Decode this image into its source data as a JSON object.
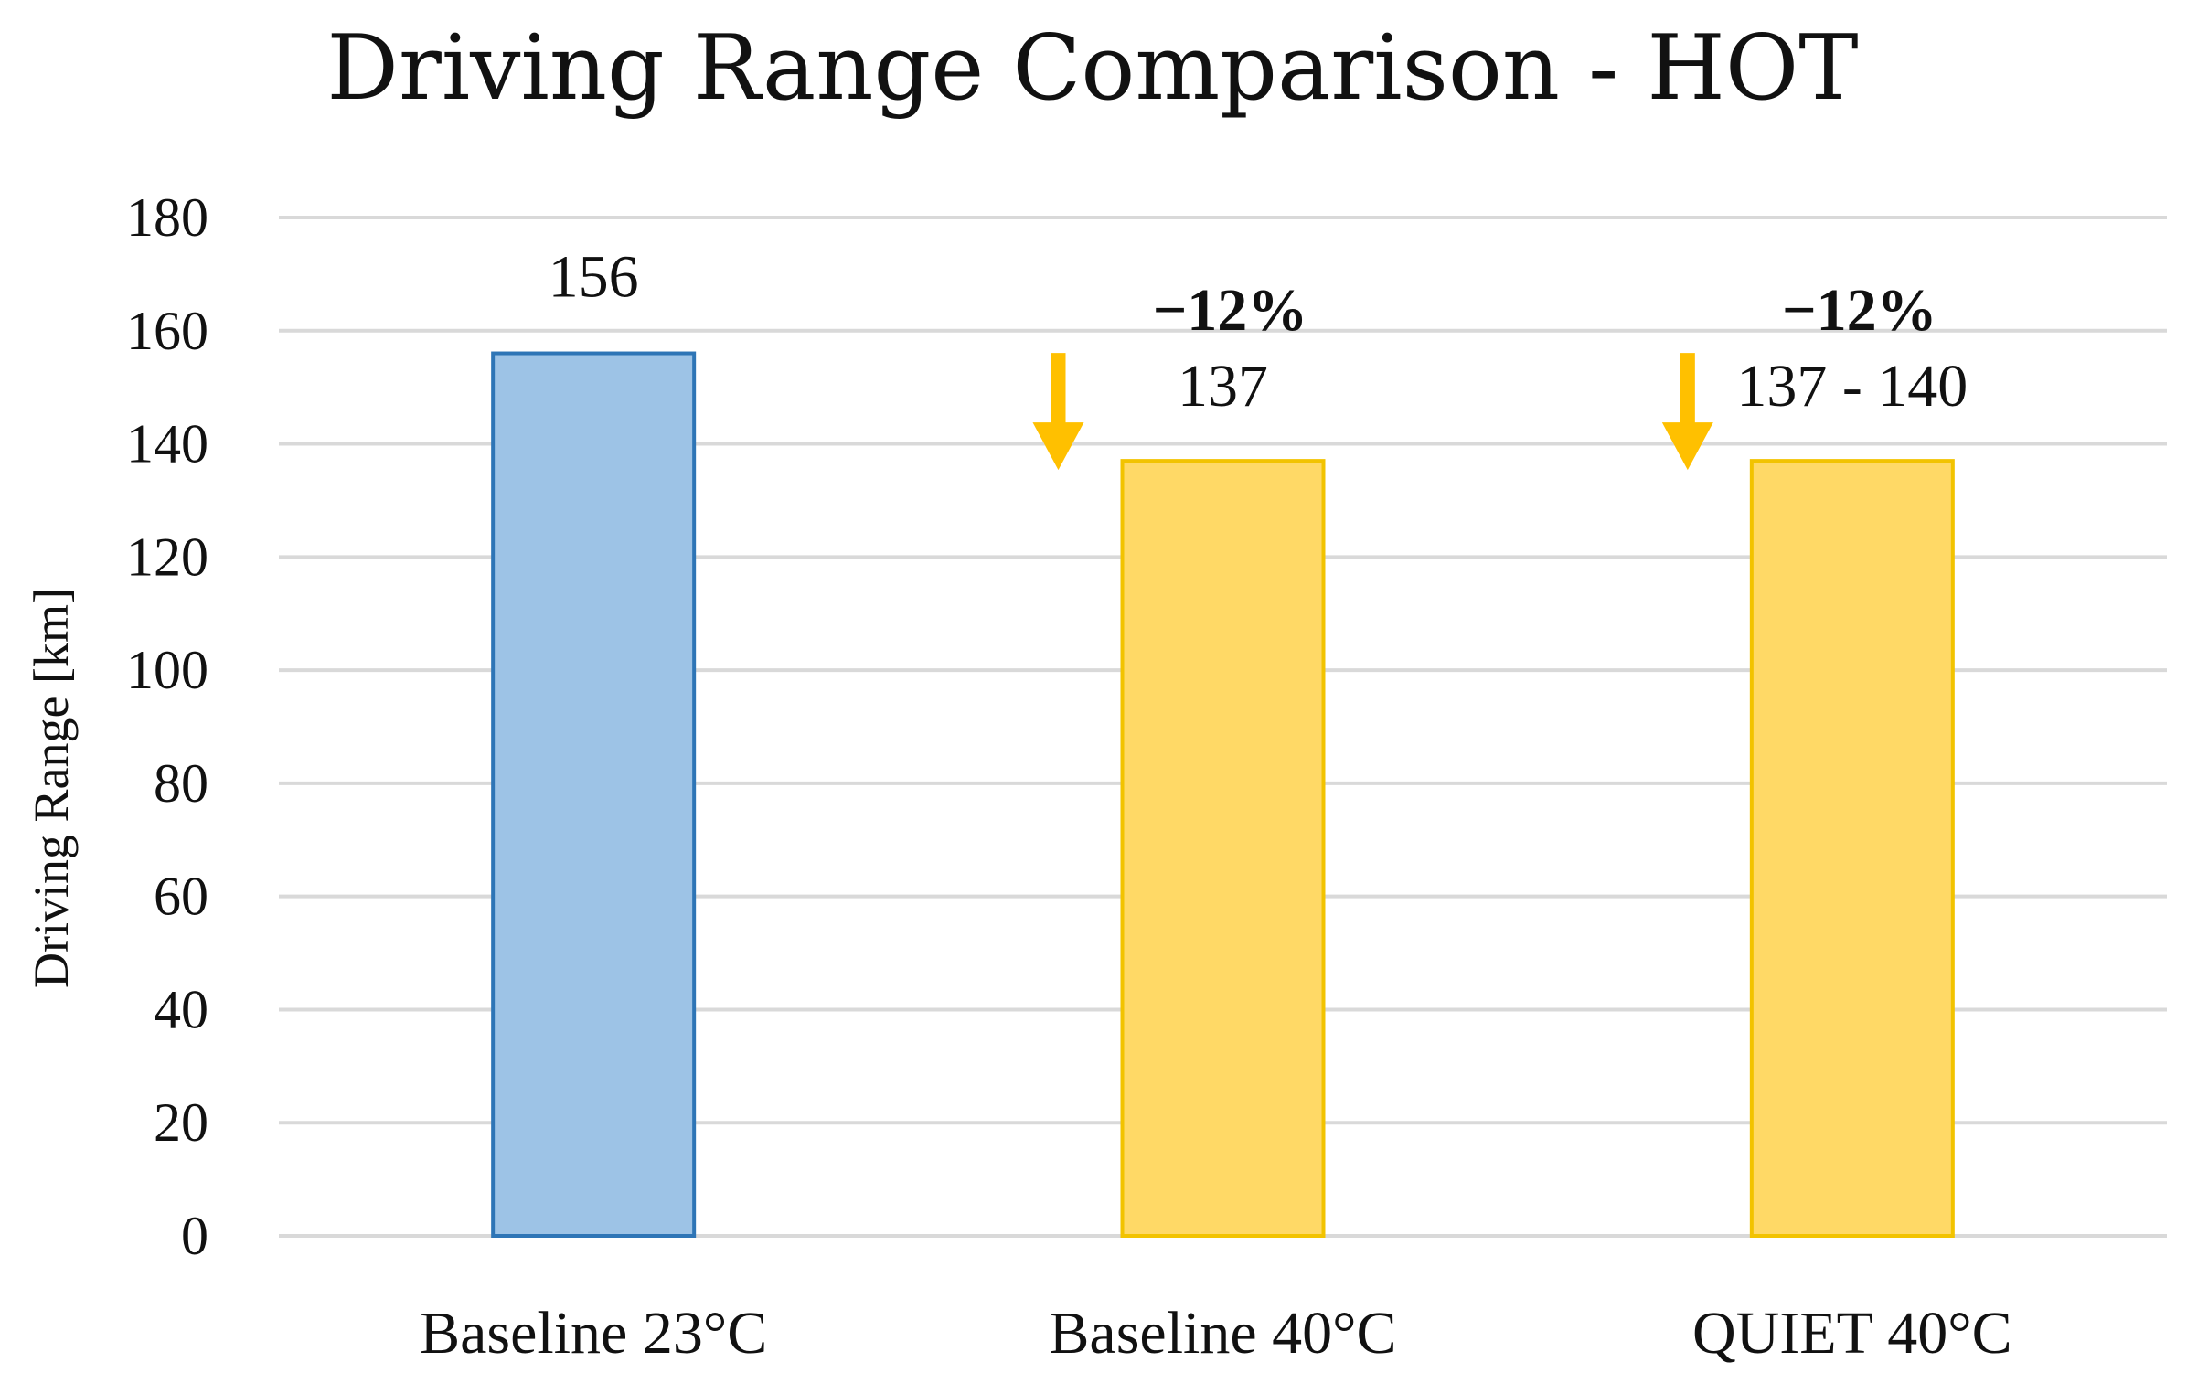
{
  "chart_data": {
    "type": "bar",
    "title": "Driving Range Comparison - HOT",
    "xlabel": "",
    "ylabel": "Driving Range [km]",
    "ylim": [
      0,
      180
    ],
    "yticks": [
      "0",
      "20",
      "40",
      "60",
      "80",
      "100",
      "120",
      "140",
      "160",
      "180"
    ],
    "grid": true,
    "categories": [
      "Baseline 23°C",
      "Baseline 40°C",
      "QUIET 40°C"
    ],
    "values": [
      156,
      137,
      137
    ],
    "data_labels": [
      "156",
      "137",
      "137 - 140"
    ],
    "change_labels": [
      "",
      "−12%",
      "−12%"
    ],
    "colors": {
      "baseline_fill": "#9dc3e6",
      "baseline_stroke": "#2e75b6",
      "hot_fill": "#ffd966",
      "hot_stroke": "#f2c300",
      "arrow": "#ffc000"
    }
  }
}
